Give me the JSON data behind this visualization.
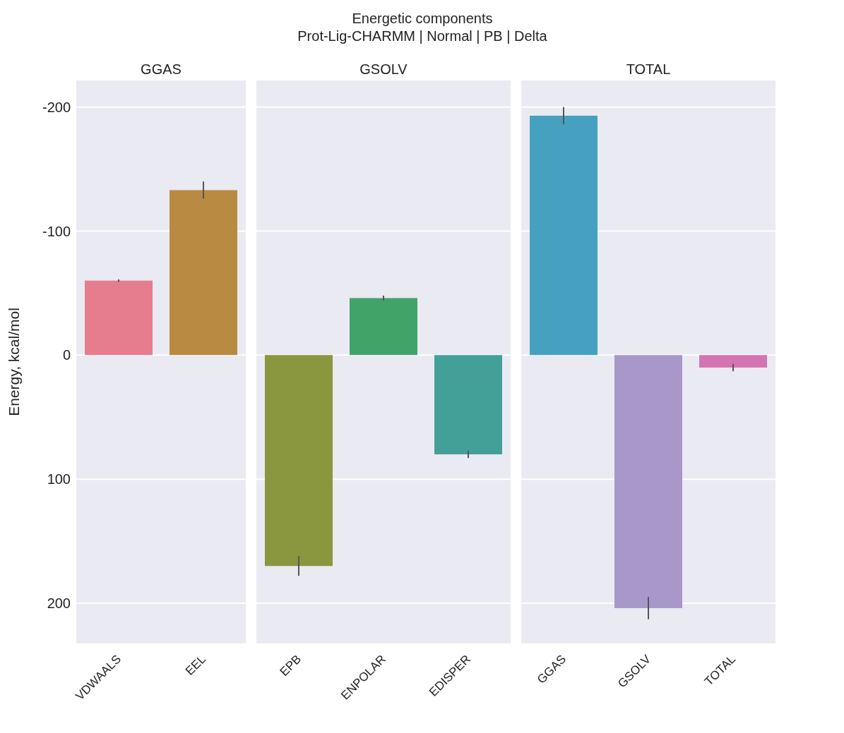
{
  "chart_data": [
    {
      "type": "bar",
      "title": "GGAS",
      "ylabel": "Energy, kcal/mol",
      "annotations": [
        "Energetic components",
        "Prot-Lig-CHARMM | Normal | PB | Delta"
      ],
      "categories": [
        "VDWAALS",
        "EEL"
      ],
      "values": [
        -60,
        -133
      ],
      "errors": [
        1,
        7
      ],
      "colors": [
        "#e67d8f",
        "#b98a41"
      ],
      "ylim": [
        233,
        -222
      ],
      "yticks": [
        -200,
        -100,
        0,
        100,
        200
      ],
      "grid": "y"
    },
    {
      "type": "bar",
      "title": "GSOLV",
      "categories": [
        "EPB",
        "ENPOLAR",
        "EDISPER"
      ],
      "values": [
        170,
        -46,
        80
      ],
      "errors": [
        8,
        2,
        3
      ],
      "colors": [
        "#8b973e",
        "#42a369",
        "#43a098"
      ],
      "ylim": [
        233,
        -222
      ],
      "yticks": [
        -200,
        -100,
        0,
        100,
        200
      ],
      "grid": "y",
      "tick_labels": "x"
    },
    {
      "type": "bar",
      "title": "TOTAL",
      "categories": [
        "GGAS",
        "GSOLV",
        "TOTAL"
      ],
      "values": [
        -193,
        204,
        10
      ],
      "errors": [
        7,
        9,
        3
      ],
      "colors": [
        "#46a0bf",
        "#a898c9",
        "#d574b3"
      ],
      "ylim": [
        233,
        -222
      ],
      "yticks": [
        -200,
        -100,
        0,
        100,
        200
      ],
      "grid": "y",
      "tick_labels": "x"
    }
  ]
}
